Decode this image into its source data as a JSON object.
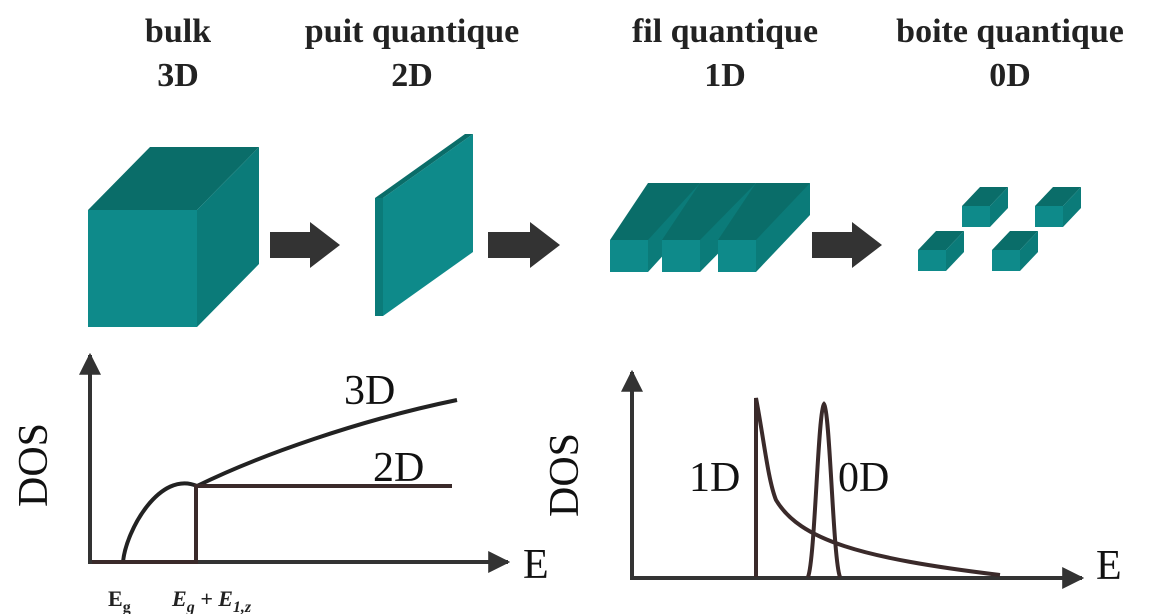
{
  "headers": [
    {
      "name": "bulk",
      "dim": "3D"
    },
    {
      "name": "puit quantique",
      "dim": "2D"
    },
    {
      "name": "fil quantique",
      "dim": "1D"
    },
    {
      "name": "boite quantique",
      "dim": "0D"
    }
  ],
  "colors": {
    "front": "#0e8a8a",
    "top": "#0a6d69",
    "side": "#0b7b79",
    "arrow": "#333333",
    "curve": "#222222",
    "step": "#3a2a2a"
  },
  "left_plot": {
    "ylabel": "DOS",
    "xlabel": "E",
    "curve_3d": "3D",
    "curve_2d": "2D",
    "tick_eg": "E",
    "tick_eg_sub": "g",
    "tick_e1_a": "E",
    "tick_e1_a_sub": "g",
    "tick_e1_plus": " + E",
    "tick_e1_sub": "1,z"
  },
  "right_plot": {
    "ylabel": "DOS",
    "xlabel": "E",
    "curve_1d": "1D",
    "curve_0d": "0D"
  }
}
